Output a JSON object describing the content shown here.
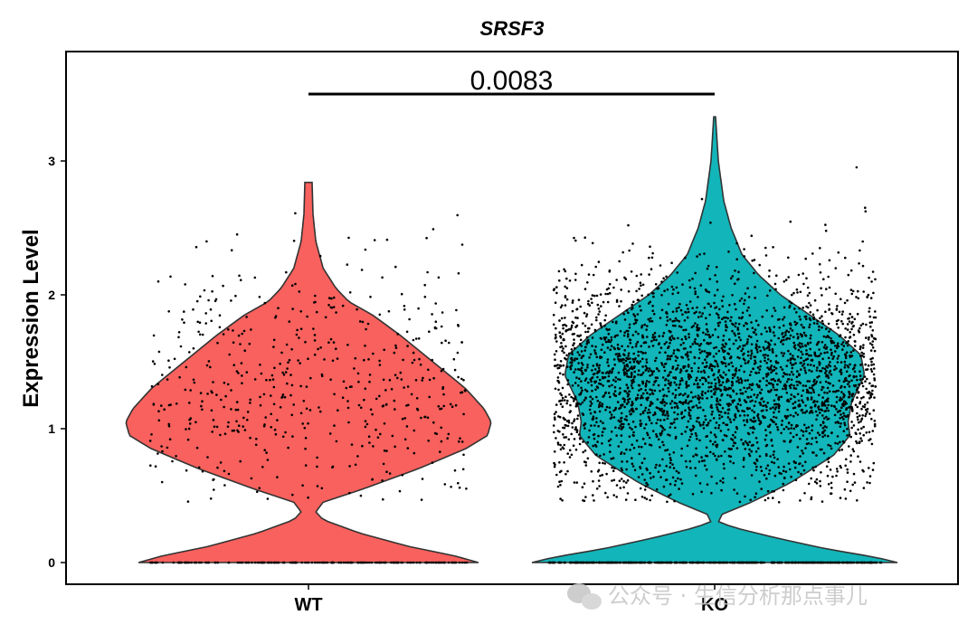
{
  "chart_data": {
    "type": "violin",
    "title": "SRSF3",
    "xlabel": "",
    "ylabel": "Expression Level",
    "ylim": [
      -0.15,
      3.65
    ],
    "yticks": [
      0,
      1,
      2,
      3
    ],
    "ytick_labels": [
      "0",
      "1",
      "2",
      "3"
    ],
    "categories": [
      "WT",
      "KO"
    ],
    "colors": {
      "WT": "#F8615D",
      "KO": "#12B5B9"
    },
    "series": [
      {
        "name": "WT",
        "max": 2.84,
        "width_profile": [
          [
            0.0,
            0.93
          ],
          [
            0.05,
            0.8
          ],
          [
            0.12,
            0.55
          ],
          [
            0.22,
            0.28
          ],
          [
            0.32,
            0.08
          ],
          [
            0.38,
            0.04
          ],
          [
            0.45,
            0.08
          ],
          [
            0.55,
            0.3
          ],
          [
            0.7,
            0.6
          ],
          [
            0.85,
            0.86
          ],
          [
            0.95,
            0.98
          ],
          [
            1.05,
            1.0
          ],
          [
            1.15,
            0.96
          ],
          [
            1.3,
            0.86
          ],
          [
            1.5,
            0.68
          ],
          [
            1.7,
            0.5
          ],
          [
            1.85,
            0.35
          ],
          [
            1.95,
            0.22
          ],
          [
            2.05,
            0.15
          ],
          [
            2.2,
            0.08
          ],
          [
            2.4,
            0.04
          ],
          [
            2.6,
            0.025
          ],
          [
            2.84,
            0.02
          ]
        ],
        "n_points": 700
      },
      {
        "name": "KO",
        "max": 3.33,
        "width_profile": [
          [
            0.0,
            1.0
          ],
          [
            0.04,
            0.88
          ],
          [
            0.1,
            0.62
          ],
          [
            0.18,
            0.35
          ],
          [
            0.25,
            0.14
          ],
          [
            0.3,
            0.02
          ],
          [
            0.36,
            0.04
          ],
          [
            0.45,
            0.2
          ],
          [
            0.6,
            0.42
          ],
          [
            0.8,
            0.65
          ],
          [
            0.95,
            0.74
          ],
          [
            1.05,
            0.73
          ],
          [
            1.2,
            0.75
          ],
          [
            1.4,
            0.82
          ],
          [
            1.55,
            0.8
          ],
          [
            1.7,
            0.68
          ],
          [
            1.85,
            0.52
          ],
          [
            2.0,
            0.36
          ],
          [
            2.15,
            0.24
          ],
          [
            2.3,
            0.15
          ],
          [
            2.5,
            0.09
          ],
          [
            2.7,
            0.05
          ],
          [
            3.0,
            0.02
          ],
          [
            3.33,
            0.005
          ]
        ],
        "n_points": 3500
      }
    ],
    "comparisons": [
      {
        "groups": [
          "WT",
          "KO"
        ],
        "label": "0.0083",
        "y": 3.5
      }
    ]
  },
  "watermark": {
    "text": "公众号 · 生信分析那点事儿"
  }
}
